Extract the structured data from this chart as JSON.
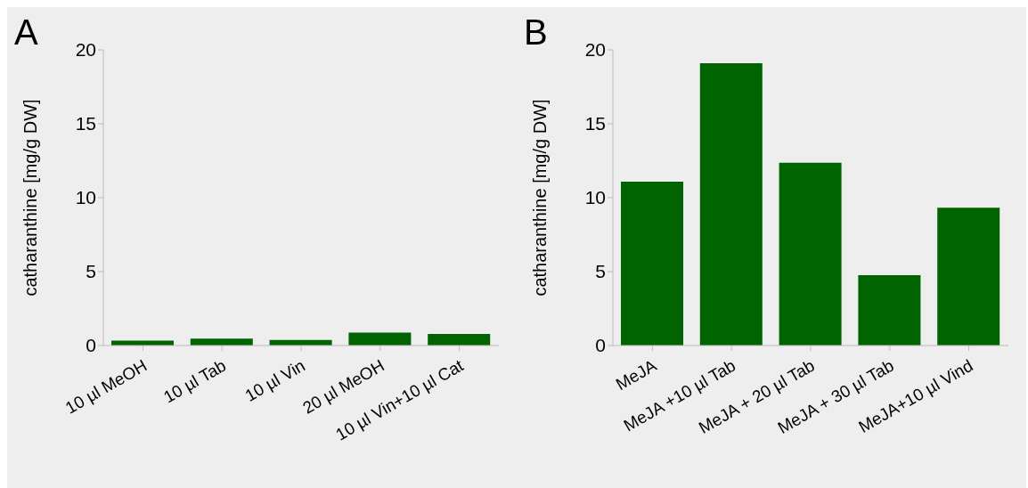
{
  "chart_data": [
    {
      "type": "bar",
      "title": "A",
      "ylabel": "catharanthine [mg/g DW]",
      "categories": [
        "10 µl MeOH",
        "10 µl Tab",
        "10 µl Vin",
        "20 µl MeOH",
        "10 µl Vin+10 µl Cat"
      ],
      "values": [
        0.33,
        0.46,
        0.38,
        0.88,
        0.79
      ],
      "color": "#006400",
      "ylim": [
        0,
        20
      ],
      "yticks": [
        0,
        5,
        10,
        15,
        20
      ],
      "grid": false
    },
    {
      "type": "bar",
      "title": "B",
      "ylabel": "catharanthine [mg/g DW]",
      "categories": [
        "MeJA",
        "MeJA +10 µl Tab",
        "MeJA + 20 µl Tab",
        "MeJA + 30 µl Tab",
        "MeJA+10 µl Vind"
      ],
      "values": [
        11.08,
        19.09,
        12.36,
        4.76,
        9.32
      ],
      "color": "#006400",
      "ylim": [
        0,
        20
      ],
      "yticks": [
        0,
        5,
        10,
        15,
        20
      ],
      "grid": false
    }
  ]
}
